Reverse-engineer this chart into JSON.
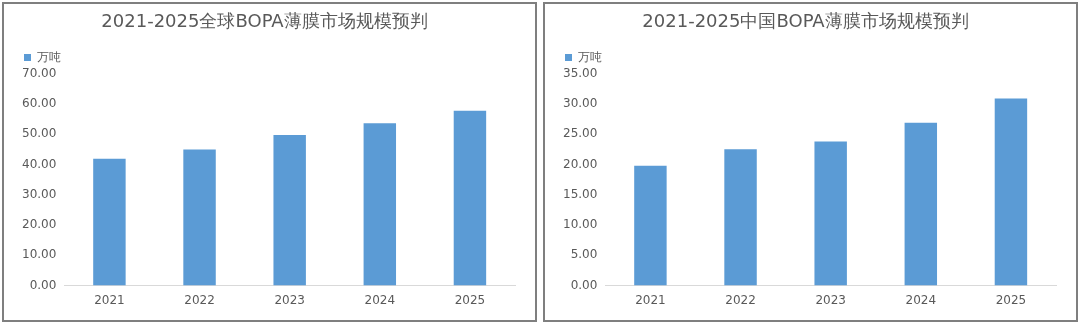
{
  "chart_data": [
    {
      "type": "bar",
      "title": "2021-2025全球BOPA薄膜市场规模预判",
      "categories": [
        "2021",
        "2022",
        "2023",
        "2024",
        "2025"
      ],
      "series": [
        {
          "name": "万吨",
          "color": "#5b9bd5",
          "values": [
            41.9,
            44.9,
            49.7,
            53.6,
            57.7
          ]
        }
      ],
      "ylim": [
        0,
        70
      ],
      "yticks": [
        {
          "value": 0,
          "label": "0.00"
        },
        {
          "value": 10,
          "label": "10.00"
        },
        {
          "value": 20,
          "label": "20.00"
        },
        {
          "value": 30,
          "label": "30.00"
        },
        {
          "value": 40,
          "label": "40.00"
        },
        {
          "value": 50,
          "label": "50.00"
        },
        {
          "value": 60,
          "label": "60.00"
        },
        {
          "value": 70,
          "label": "70.00"
        }
      ],
      "grid": false,
      "legend": "top left"
    },
    {
      "type": "bar",
      "title": "2021-2025中国BOPA薄膜市场规模预判",
      "categories": [
        "2021",
        "2022",
        "2023",
        "2024",
        "2025"
      ],
      "series": [
        {
          "name": "万吨",
          "color": "#5b9bd5",
          "values": [
            19.8,
            22.5,
            23.8,
            26.9,
            30.9
          ]
        }
      ],
      "ylim": [
        0,
        35
      ],
      "yticks": [
        {
          "value": 0,
          "label": "0.00"
        },
        {
          "value": 5,
          "label": "5.00"
        },
        {
          "value": 10,
          "label": "10.00"
        },
        {
          "value": 15,
          "label": "15.00"
        },
        {
          "value": 20,
          "label": "20.00"
        },
        {
          "value": 25,
          "label": "25.00"
        },
        {
          "value": 30,
          "label": "30.00"
        },
        {
          "value": 35,
          "label": "35.00"
        }
      ],
      "grid": false,
      "legend": "top left"
    }
  ]
}
